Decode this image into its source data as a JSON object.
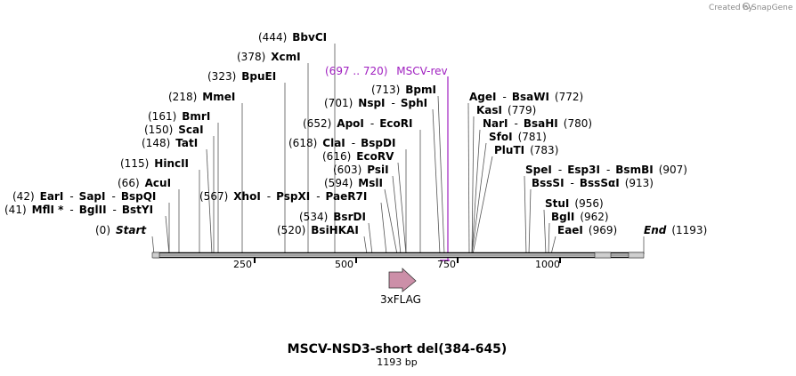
{
  "credit": {
    "text": "Created by",
    "brand": "SnapGene"
  },
  "title": "MSCV-NSD3-short del(384-645)",
  "subtitle": "1193 bp",
  "length": 1193,
  "ruler_ticks": [
    "250",
    "500",
    "750",
    "1000"
  ],
  "feature": {
    "name": "3xFLAG"
  },
  "primer": {
    "range": "(697 .. 720)",
    "name": "MSCV-rev"
  },
  "labels": [
    {
      "id": "bbvci",
      "parts": [
        [
          "(444)",
          "p"
        ],
        [
          "BbvCI",
          "b"
        ]
      ]
    },
    {
      "id": "xcmi",
      "parts": [
        [
          "(378)",
          "p"
        ],
        [
          "XcmI",
          "b"
        ]
      ]
    },
    {
      "id": "bpuei",
      "parts": [
        [
          "(323)",
          "p"
        ],
        [
          "BpuEI",
          "b"
        ]
      ]
    },
    {
      "id": "mmei",
      "parts": [
        [
          "(218)",
          "p"
        ],
        [
          "MmeI",
          "b"
        ]
      ]
    },
    {
      "id": "bmri",
      "parts": [
        [
          "(161)",
          "p"
        ],
        [
          "BmrI",
          "b"
        ]
      ]
    },
    {
      "id": "scai",
      "parts": [
        [
          "(150)",
          "p"
        ],
        [
          "ScaI",
          "b"
        ]
      ]
    },
    {
      "id": "tati",
      "parts": [
        [
          "(148)",
          "p"
        ],
        [
          "TatI",
          "b"
        ]
      ]
    },
    {
      "id": "hincii",
      "parts": [
        [
          "(115)",
          "p"
        ],
        [
          "HincII",
          "b"
        ]
      ]
    },
    {
      "id": "acui",
      "parts": [
        [
          "(66)",
          "p"
        ],
        [
          "AcuI",
          "b"
        ]
      ]
    },
    {
      "id": "eari",
      "parts": [
        [
          "(42)",
          "p"
        ],
        [
          "EarI",
          "b"
        ],
        [
          "-",
          "p"
        ],
        [
          "SapI",
          "b"
        ],
        [
          "-",
          "p"
        ],
        [
          "BspQI",
          "b"
        ]
      ]
    },
    {
      "id": "mfli",
      "parts": [
        [
          "(41)",
          "p"
        ],
        [
          "MflI *",
          "b"
        ],
        [
          "-",
          "p"
        ],
        [
          "BglII",
          "b"
        ],
        [
          "-",
          "p"
        ],
        [
          "BstYI",
          "b"
        ]
      ]
    },
    {
      "id": "start",
      "parts": [
        [
          "(0)",
          "p"
        ],
        [
          "Start",
          "i"
        ]
      ]
    },
    {
      "id": "bpmi",
      "parts": [
        [
          "(713)",
          "p"
        ],
        [
          "BpmI",
          "b"
        ]
      ]
    },
    {
      "id": "nspi",
      "parts": [
        [
          "(701)",
          "p"
        ],
        [
          "NspI",
          "b"
        ],
        [
          "-",
          "p"
        ],
        [
          "SphI",
          "b"
        ]
      ]
    },
    {
      "id": "apoi",
      "parts": [
        [
          "(652)",
          "p"
        ],
        [
          "ApoI",
          "b"
        ],
        [
          "-",
          "p"
        ],
        [
          "EcoRI",
          "b"
        ]
      ]
    },
    {
      "id": "clai",
      "parts": [
        [
          "(618)",
          "p"
        ],
        [
          "ClaI",
          "b"
        ],
        [
          "-",
          "p"
        ],
        [
          "BspDI",
          "b"
        ]
      ]
    },
    {
      "id": "ecorv",
      "parts": [
        [
          "(616)",
          "p"
        ],
        [
          "EcoRV",
          "b"
        ]
      ]
    },
    {
      "id": "psii",
      "parts": [
        [
          "(603)",
          "p"
        ],
        [
          "PsiI",
          "b"
        ]
      ]
    },
    {
      "id": "msli",
      "parts": [
        [
          "(594)",
          "p"
        ],
        [
          "MslI",
          "b"
        ]
      ]
    },
    {
      "id": "xhoi",
      "parts": [
        [
          "(567)",
          "p"
        ],
        [
          "XhoI",
          "b"
        ],
        [
          "-",
          "p"
        ],
        [
          "PspXI",
          "b"
        ],
        [
          "-",
          "p"
        ],
        [
          "PaeR7I",
          "b"
        ]
      ]
    },
    {
      "id": "bsrdi",
      "parts": [
        [
          "(534)",
          "p"
        ],
        [
          "BsrDI",
          "b"
        ]
      ]
    },
    {
      "id": "bsihkai",
      "parts": [
        [
          "(520)",
          "p"
        ],
        [
          "BsiHKAI",
          "b"
        ]
      ]
    },
    {
      "id": "agei",
      "parts": [
        [
          "AgeI",
          "b"
        ],
        [
          "-",
          "p"
        ],
        [
          "BsaWI",
          "b"
        ],
        [
          "(772)",
          "p"
        ]
      ]
    },
    {
      "id": "kasi",
      "parts": [
        [
          "KasI",
          "b"
        ],
        [
          "(779)",
          "p"
        ]
      ]
    },
    {
      "id": "nari",
      "parts": [
        [
          "NarI",
          "b"
        ],
        [
          "-",
          "p"
        ],
        [
          "BsaHI",
          "b"
        ],
        [
          "(780)",
          "p"
        ]
      ]
    },
    {
      "id": "sfoi",
      "parts": [
        [
          "SfoI",
          "b"
        ],
        [
          "(781)",
          "p"
        ]
      ]
    },
    {
      "id": "pluti",
      "parts": [
        [
          "PluTI",
          "b"
        ],
        [
          "(783)",
          "p"
        ]
      ]
    },
    {
      "id": "spei",
      "parts": [
        [
          "SpeI",
          "b"
        ],
        [
          "-",
          "p"
        ],
        [
          "Esp3I",
          "b"
        ],
        [
          "-",
          "p"
        ],
        [
          "BsmBI",
          "b"
        ],
        [
          "(907)",
          "p"
        ]
      ]
    },
    {
      "id": "bsssi",
      "parts": [
        [
          "BssSI",
          "b"
        ],
        [
          "-",
          "p"
        ],
        [
          "BssSαI",
          "b"
        ],
        [
          "(913)",
          "p"
        ]
      ]
    },
    {
      "id": "stui",
      "parts": [
        [
          "StuI",
          "b"
        ],
        [
          "(956)",
          "p"
        ]
      ]
    },
    {
      "id": "bgli",
      "parts": [
        [
          "BglI",
          "b"
        ],
        [
          "(962)",
          "p"
        ]
      ]
    },
    {
      "id": "eaei",
      "parts": [
        [
          "EaeI",
          "b"
        ],
        [
          "(969)",
          "p"
        ]
      ]
    },
    {
      "id": "end",
      "parts": [
        [
          "End",
          "i"
        ],
        [
          "(1193)",
          "p"
        ]
      ]
    }
  ]
}
